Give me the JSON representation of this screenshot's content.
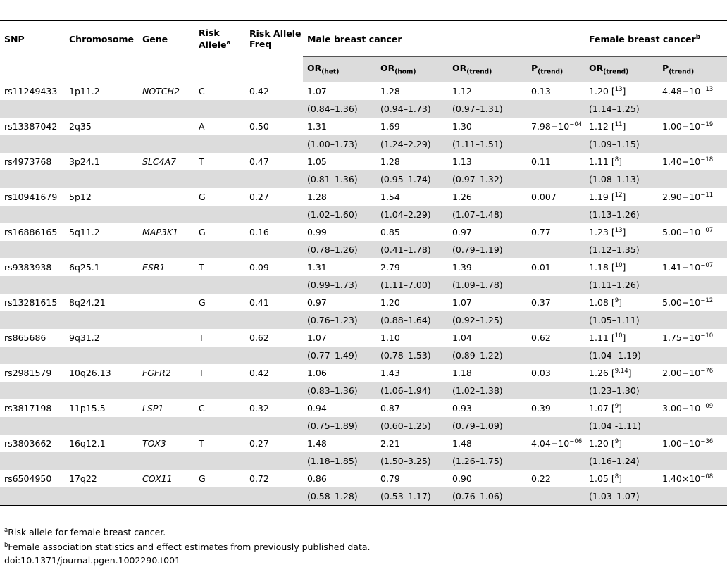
{
  "headers": {
    "snp": "SNP",
    "chromosome": "Chromosome",
    "gene": "Gene",
    "risk_allele_l1": "Risk",
    "risk_allele_l2": "Allele",
    "risk_allele_sup": "a",
    "freq_l1": "Risk Allele",
    "freq_l2": "Freq",
    "male_group": "Male breast cancer",
    "female_group": "Female breast cancer",
    "female_sup": "b",
    "or_het": "OR",
    "or_het_sub": "(het)",
    "or_hom": "OR",
    "or_hom_sub": "(hom)",
    "or_trend": "OR",
    "or_trend_sub": "(trend)",
    "p_trend": "P",
    "p_trend_sub": "(trend)",
    "f_or_trend": "OR",
    "f_or_trend_sub": "(trend)",
    "f_p_trend": "P",
    "f_p_trend_sub": "(trend)"
  },
  "rows": [
    {
      "snp": "rs11249433",
      "chr": "1p11.2",
      "gene": "NOTCH2",
      "allele": "C",
      "freq": "0.42",
      "or_het": "1.07",
      "or_het_ci": "(0.84–1.36)",
      "or_hom": "1.28",
      "or_hom_ci": "(0.94–1.73)",
      "or_trend": "1.12",
      "or_trend_ci": "(0.97–1.31)",
      "p_trend": "0.13",
      "p_exp": "",
      "f_or": "1.20 [",
      "f_ref": "13",
      "f_ci": "(1.14–1.25)",
      "f_p": "4.48−10",
      "f_p_exp": "−13"
    },
    {
      "snp": "rs13387042",
      "chr": "2q35",
      "gene": "",
      "allele": "A",
      "freq": "0.50",
      "or_het": "1.31",
      "or_het_ci": "(1.00–1.73)",
      "or_hom": "1.69",
      "or_hom_ci": "(1.24–2.29)",
      "or_trend": "1.30",
      "or_trend_ci": "(1.11–1.51)",
      "p_trend": "7.98−10",
      "p_exp": "−04",
      "f_or": "1.12 [",
      "f_ref": "11",
      "f_ci": "(1.09–1.15)",
      "f_p": "1.00−10",
      "f_p_exp": "−19"
    },
    {
      "snp": "rs4973768",
      "chr": "3p24.1",
      "gene": "SLC4A7",
      "allele": "T",
      "freq": "0.47",
      "or_het": "1.05",
      "or_het_ci": "(0.81–1.36)",
      "or_hom": "1.28",
      "or_hom_ci": "(0.95–1.74)",
      "or_trend": "1.13",
      "or_trend_ci": "(0.97–1.32)",
      "p_trend": "0.11",
      "p_exp": "",
      "f_or": "1.11 [",
      "f_ref": "8",
      "f_ci": "(1.08–1.13)",
      "f_p": "1.40−10",
      "f_p_exp": "−18"
    },
    {
      "snp": "rs10941679",
      "chr": "5p12",
      "gene": "",
      "allele": "G",
      "freq": "0.27",
      "or_het": "1.28",
      "or_het_ci": "(1.02–1.60)",
      "or_hom": "1.54",
      "or_hom_ci": "(1.04–2.29)",
      "or_trend": "1.26",
      "or_trend_ci": "(1.07–1.48)",
      "p_trend": "0.007",
      "p_exp": "",
      "f_or": "1.19 [",
      "f_ref": "12",
      "f_ci": "(1.13–1.26)",
      "f_p": "2.90−10",
      "f_p_exp": "−11"
    },
    {
      "snp": "rs16886165",
      "chr": "5q11.2",
      "gene": "MAP3K1",
      "allele": "G",
      "freq": "0.16",
      "or_het": "0.99",
      "or_het_ci": "(0.78–1.26)",
      "or_hom": "0.85",
      "or_hom_ci": "(0.41–1.78)",
      "or_trend": "0.97",
      "or_trend_ci": "(0.79–1.19)",
      "p_trend": "0.77",
      "p_exp": "",
      "f_or": "1.23 [",
      "f_ref": "13",
      "f_ci": "(1.12–1.35)",
      "f_p": "5.00−10",
      "f_p_exp": "−07"
    },
    {
      "snp": "rs9383938",
      "chr": "6q25.1",
      "gene": "ESR1",
      "allele": "T",
      "freq": "0.09",
      "or_het": "1.31",
      "or_het_ci": "(0.99–1.73)",
      "or_hom": "2.79",
      "or_hom_ci": "(1.11–7.00)",
      "or_trend": "1.39",
      "or_trend_ci": "(1.09–1.78)",
      "p_trend": "0.01",
      "p_exp": "",
      "f_or": "1.18 [",
      "f_ref": "10",
      "f_ci": "(1.11–1.26)",
      "f_p": "1.41−10",
      "f_p_exp": "−07"
    },
    {
      "snp": "rs13281615",
      "chr": "8q24.21",
      "gene": "",
      "allele": "G",
      "freq": "0.41",
      "or_het": "0.97",
      "or_het_ci": "(0.76–1.23)",
      "or_hom": "1.20",
      "or_hom_ci": "(0.88–1.64)",
      "or_trend": "1.07",
      "or_trend_ci": "(0.92–1.25)",
      "p_trend": "0.37",
      "p_exp": "",
      "f_or": "1.08 [",
      "f_ref": "9",
      "f_ci": "(1.05–1.11)",
      "f_p": "5.00−10",
      "f_p_exp": "−12"
    },
    {
      "snp": "rs865686",
      "chr": "9q31.2",
      "gene": "",
      "allele": "T",
      "freq": "0.62",
      "or_het": "1.07",
      "or_het_ci": "(0.77–1.49)",
      "or_hom": "1.10",
      "or_hom_ci": "(0.78–1.53)",
      "or_trend": "1.04",
      "or_trend_ci": "(0.89–1.22)",
      "p_trend": "0.62",
      "p_exp": "",
      "f_or": "1.11 [",
      "f_ref": "10",
      "f_ci": "(1.04 -1.19)",
      "f_p": "1.75−10",
      "f_p_exp": "−10"
    },
    {
      "snp": "rs2981579",
      "chr": "10q26.13",
      "gene": "FGFR2",
      "allele": "T",
      "freq": "0.42",
      "or_het": "1.06",
      "or_het_ci": "(0.83–1.36)",
      "or_hom": "1.43",
      "or_hom_ci": "(1.06–1.94)",
      "or_trend": "1.18",
      "or_trend_ci": "(1.02–1.38)",
      "p_trend": "0.03",
      "p_exp": "",
      "f_or": "1.26 [",
      "f_ref": "9,14",
      "f_ci": "(1.23–1.30)",
      "f_p": "2.00−10",
      "f_p_exp": "−76"
    },
    {
      "snp": "rs3817198",
      "chr": "11p15.5",
      "gene": "LSP1",
      "allele": "C",
      "freq": "0.32",
      "or_het": "0.94",
      "or_het_ci": "(0.75–1.89)",
      "or_hom": "0.87",
      "or_hom_ci": "(0.60–1.25)",
      "or_trend": "0.93",
      "or_trend_ci": "(0.79–1.09)",
      "p_trend": "0.39",
      "p_exp": "",
      "f_or": "1.07 [",
      "f_ref": "9",
      "f_ci": "(1.04 -1.11)",
      "f_p": "3.00−10",
      "f_p_exp": "−09"
    },
    {
      "snp": "rs3803662",
      "chr": "16q12.1",
      "gene": "TOX3",
      "allele": "T",
      "freq": "0.27",
      "or_het": "1.48",
      "or_het_ci": "(1.18–1.85)",
      "or_hom": "2.21",
      "or_hom_ci": "(1.50–3.25)",
      "or_trend": "1.48",
      "or_trend_ci": "(1.26–1.75)",
      "p_trend": "4.04−10",
      "p_exp": "−06",
      "f_or": "1.20 [",
      "f_ref": "9",
      "f_ci": "(1.16–1.24)",
      "f_p": "1.00−10",
      "f_p_exp": "−36"
    },
    {
      "snp": "rs6504950",
      "chr": "17q22",
      "gene": "COX11",
      "allele": "G",
      "freq": "0.72",
      "or_het": "0.86",
      "or_het_ci": "(0.58–1.28)",
      "or_hom": "0.79",
      "or_hom_ci": "(0.53–1.17)",
      "or_trend": "0.90",
      "or_trend_ci": "(0.76–1.06)",
      "p_trend": "0.22",
      "p_exp": "",
      "f_or": "1.05 [",
      "f_ref": "8",
      "f_ci": "(1.03–1.07)",
      "f_p": "1.40×10",
      "f_p_exp": "−08"
    }
  ],
  "ref_close": "]",
  "footnotes": {
    "a_mark": "a",
    "a_text": "Risk allele for female breast cancer.",
    "b_mark": "b",
    "b_text": "Female association statistics and effect estimates from previously published data.",
    "doi": "doi:10.1371/journal.pgen.1002290.t001"
  }
}
